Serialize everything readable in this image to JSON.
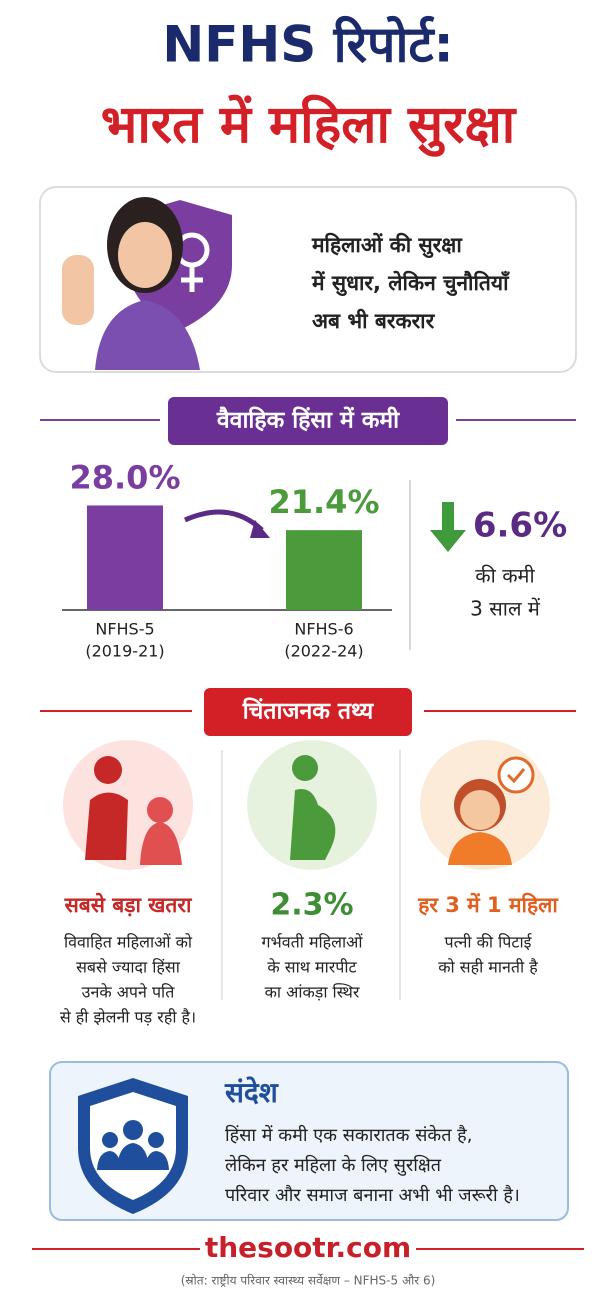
{
  "header": {
    "title_line1": "NFHS रिपोर्ट:",
    "title_line2": "भारत में महिला सुरक्षा"
  },
  "hero": {
    "lines": [
      "महिलाओं की सुरक्षा",
      "में सुधार, लेकिन चुनौतियाँ",
      "अब भी बरकरार"
    ]
  },
  "violence": {
    "heading": "वैवाहिक हिंसा में कमी",
    "chart_data": {
      "type": "bar",
      "categories": [
        "NFHS-5",
        "NFHS-6"
      ],
      "periods": [
        "(2019-21)",
        "(2022-24)"
      ],
      "values": [
        28.0,
        21.4
      ],
      "value_labels": [
        "28.0%",
        "21.4%"
      ],
      "colors": [
        "#7a3ea1",
        "#4b9b3d"
      ],
      "ylim": [
        0,
        30
      ]
    },
    "decline": {
      "value": "6.6%",
      "lines": [
        "की कमी",
        "3 साल में"
      ]
    }
  },
  "facts": {
    "heading": "चिंताजनक तथ्य",
    "items": [
      {
        "title": "सबसे बड़ा खतरा",
        "lines": [
          "विवाहित महिलाओं को",
          "सबसे ज्यादा हिंसा",
          "उनके अपने पति",
          "से ही झेलनी पड़ रही है।"
        ]
      },
      {
        "title": "2.3%",
        "lines": [
          "गर्भवती महिलाओं",
          "के साथ मारपीट",
          "का आंकड़ा स्थिर"
        ]
      },
      {
        "title": "हर 3 में 1 महिला",
        "lines": [
          "पत्नी की पिटाई",
          "को सही मानती है"
        ]
      }
    ]
  },
  "message": {
    "title": "संदेश",
    "lines": [
      "हिंसा में कमी एक सकारातक संकेत है,",
      "लेकिन हर महिला के लिए सुरक्षित",
      "परिवार और समाज बनाना अभी भी जरूरी है।"
    ]
  },
  "footer": {
    "site": "thesootr.com",
    "source": "(स्रोत: राष्ट्रीय परिवार स्वास्थ्य सर्वेक्षण – NFHS-5 और 6)"
  }
}
